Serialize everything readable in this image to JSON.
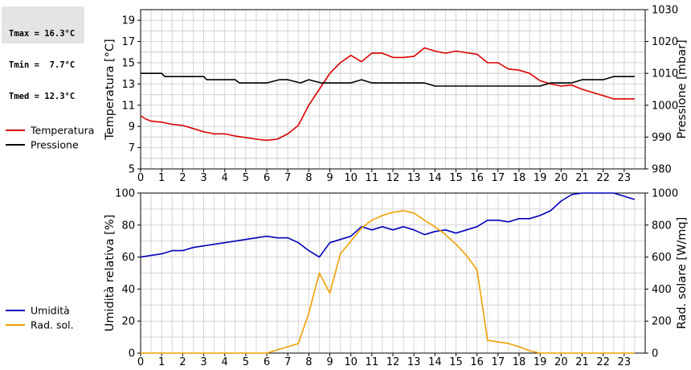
{
  "stats": {
    "tmax": "Tmax = 16.3°C",
    "tmin": "Tmin =  7.7°C",
    "tmed": "Tmed = 12.3°C"
  },
  "chart_data": [
    {
      "type": "line",
      "x_ticks": [
        "0",
        "1",
        "2",
        "3",
        "4",
        "5",
        "6",
        "7",
        "8",
        "9",
        "10",
        "11",
        "12",
        "13",
        "14",
        "15",
        "16",
        "17",
        "18",
        "19",
        "20",
        "21",
        "22",
        "23"
      ],
      "x_range": [
        0,
        24
      ],
      "ylabel": "Temperatura [°C]",
      "ylim": [
        5,
        20
      ],
      "y_ticks": [
        "5",
        "7",
        "9",
        "11",
        "13",
        "15",
        "17",
        "19"
      ],
      "y2label": "Pressione [mbar]",
      "y2lim": [
        980,
        1030
      ],
      "y2_ticks": [
        "980",
        "990",
        "1000",
        "1010",
        "1020",
        "1030"
      ],
      "grid": true,
      "legend_position": "left",
      "series": [
        {
          "name": "Temperatura",
          "color": "#dd0000",
          "axis": "left",
          "x": [
            0,
            0.25,
            0.5,
            1,
            1.5,
            2,
            2.5,
            3,
            3.5,
            4,
            4.5,
            5,
            5.5,
            6,
            6.5,
            7,
            7.5,
            8,
            8.5,
            9,
            9.5,
            10,
            10.5,
            11,
            11.5,
            12,
            12.5,
            13,
            13.5,
            14,
            14.5,
            15,
            15.5,
            16,
            16.5,
            17,
            17.5,
            18,
            18.5,
            19,
            19.5,
            20,
            20.5,
            21,
            21.5,
            22,
            22.5,
            23,
            23.5
          ],
          "values": [
            10,
            9.7,
            9.5,
            9.4,
            9.2,
            9.1,
            8.8,
            8.5,
            8.3,
            8.3,
            8.1,
            7.95,
            7.8,
            7.7,
            7.8,
            8.3,
            9.1,
            11,
            12.5,
            14,
            15,
            15.7,
            15.1,
            15.9,
            15.9,
            15.5,
            15.5,
            15.6,
            16.4,
            16.1,
            15.9,
            16.1,
            15.95,
            15.8,
            15,
            15,
            14.4,
            14.3,
            14,
            13.3,
            13,
            12.8,
            12.9,
            12.5,
            12.2,
            11.9,
            11.6,
            11.6,
            11.6
          ]
        },
        {
          "name": "Pressione",
          "color": "#000000",
          "axis": "right",
          "x": [
            0,
            1,
            1.15,
            2,
            2.15,
            3,
            3.15,
            4,
            4.5,
            4.7,
            5,
            6,
            6.6,
            7,
            7.6,
            8,
            8.6,
            9,
            10,
            10.5,
            11,
            12,
            13,
            13.5,
            14,
            15,
            16,
            17,
            18,
            19,
            19.5,
            20,
            20.5,
            21,
            22,
            22.5,
            23,
            23.5
          ],
          "values": [
            1010,
            1010,
            1009,
            1009,
            1009,
            1009,
            1008,
            1008,
            1008,
            1007,
            1007,
            1007,
            1008,
            1008,
            1007,
            1008,
            1007,
            1007,
            1007,
            1008,
            1007,
            1007,
            1007,
            1007,
            1006,
            1006,
            1006,
            1006,
            1006,
            1006,
            1007,
            1007,
            1007,
            1008,
            1008,
            1009,
            1009,
            1009
          ]
        }
      ]
    },
    {
      "type": "line",
      "x_ticks": [
        "0",
        "1",
        "2",
        "3",
        "4",
        "5",
        "6",
        "7",
        "8",
        "9",
        "10",
        "11",
        "12",
        "13",
        "14",
        "15",
        "16",
        "17",
        "18",
        "19",
        "20",
        "21",
        "22",
        "23"
      ],
      "x_range": [
        0,
        24
      ],
      "ylabel": "Umidità relativa [%]",
      "ylim": [
        0,
        100
      ],
      "y_ticks": [
        "0",
        "20",
        "40",
        "60",
        "80",
        "100"
      ],
      "y2label": "Rad. solare [W/mq]",
      "y2lim": [
        0,
        1000
      ],
      "y2_ticks": [
        "0",
        "200",
        "400",
        "600",
        "800",
        "1000"
      ],
      "grid": true,
      "legend_position": "left",
      "series": [
        {
          "name": "Umidità",
          "color": "#0000bb",
          "axis": "left",
          "x": [
            0,
            0.5,
            1,
            1.5,
            2,
            2.5,
            3,
            3.5,
            4,
            4.5,
            5,
            5.5,
            6,
            6.5,
            7,
            7.5,
            8,
            8.5,
            9,
            9.5,
            10,
            10.5,
            11,
            11.5,
            12,
            12.5,
            13,
            13.5,
            14,
            14.5,
            15,
            15.5,
            16,
            16.5,
            17,
            17.5,
            18,
            18.5,
            19,
            19.5,
            20,
            20.5,
            21,
            21.5,
            22,
            22.5,
            23,
            23.5
          ],
          "values": [
            60,
            61,
            62,
            64,
            64,
            66,
            67,
            68,
            69,
            70,
            71,
            72,
            73,
            72,
            72,
            69,
            64,
            60,
            69,
            71,
            73,
            79,
            77,
            79,
            77,
            79,
            77,
            74,
            76,
            77,
            75,
            77,
            79,
            83,
            83,
            82,
            84,
            84,
            86,
            89,
            95,
            99,
            100,
            100,
            100,
            100,
            98,
            96
          ]
        },
        {
          "name": "Rad. sol.",
          "color": "#f0a000",
          "axis": "right",
          "x": [
            0,
            1,
            2,
            3,
            4,
            5,
            6,
            6.5,
            7,
            7.5,
            8,
            8.5,
            9,
            9.5,
            10,
            10.5,
            11,
            11.5,
            12,
            12.5,
            13,
            13.5,
            14,
            14.5,
            15,
            15.5,
            16,
            16.5,
            17,
            17.5,
            18,
            18.5,
            19,
            19.5,
            20,
            21,
            22,
            23,
            23.5
          ],
          "values": [
            0,
            0,
            0,
            0,
            0,
            0,
            0,
            20,
            40,
            60,
            250,
            500,
            375,
            620,
            700,
            780,
            830,
            860,
            880,
            890,
            875,
            830,
            790,
            740,
            680,
            610,
            520,
            80,
            70,
            60,
            40,
            15,
            0,
            0,
            0,
            0,
            0,
            0,
            0
          ]
        }
      ]
    }
  ]
}
